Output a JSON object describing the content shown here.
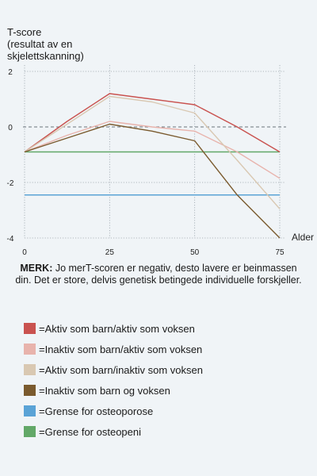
{
  "chart_data": {
    "type": "line",
    "ylabel_lines": [
      "T-score",
      "(resultat av en",
      "skjelettskanning)"
    ],
    "xlabel": "Alder",
    "x": [
      0,
      12.5,
      25,
      37.5,
      50,
      62.5,
      75
    ],
    "xticks": [
      0,
      25,
      50,
      75
    ],
    "yticks": [
      2,
      0,
      -2,
      -4
    ],
    "xlim": [
      0,
      75
    ],
    "ylim": [
      -4,
      2
    ],
    "grid": true,
    "series": [
      {
        "name": "Aktiv som barn/aktiv som voksen",
        "color": "#c9524f",
        "values": [
          -0.9,
          0.2,
          1.2,
          1.0,
          0.8,
          0.0,
          -0.9
        ]
      },
      {
        "name": "Inaktiv som barn/aktiv som voksen",
        "color": "#e8b3ac",
        "values": [
          -0.9,
          -0.3,
          0.2,
          0.0,
          -0.15,
          -0.9,
          -1.85
        ]
      },
      {
        "name": "Aktiv som barn/inaktiv som voksen",
        "color": "#d9c8b2",
        "values": [
          -0.9,
          0.1,
          1.1,
          0.9,
          0.5,
          -1.2,
          -2.95
        ]
      },
      {
        "name": "Inaktiv som barn og voksen",
        "color": "#7a5a2e",
        "values": [
          -0.9,
          -0.4,
          0.1,
          -0.15,
          -0.5,
          -2.45,
          -4.0
        ]
      }
    ],
    "reference_lines": [
      {
        "name": "Grense for osteoporose",
        "color": "#5aa3d6",
        "y": -2.45
      },
      {
        "name": "Grense for osteopeni",
        "color": "#62a868",
        "y": -0.9
      }
    ],
    "zero_line_dashed": true
  },
  "note": {
    "bold": "MERK:",
    "text": " Jo merT-scoren er negativ, desto lavere er beinmassen din. Det er store, delvis genetisk betingede individuelle forskjeller."
  },
  "legend": {
    "prefix": "= ",
    "items": [
      {
        "label": "Aktiv som barn/aktiv som voksen",
        "color": "#c9524f"
      },
      {
        "label": "Inaktiv som barn/aktiv som voksen",
        "color": "#e8b3ac"
      },
      {
        "label": "Aktiv som barn/inaktiv som voksen",
        "color": "#d9c8b2"
      },
      {
        "label": "Inaktiv som barn og voksen",
        "color": "#7a5a2e"
      },
      {
        "label": "Grense for osteoporose",
        "color": "#5aa3d6"
      },
      {
        "label": "Grense for osteopeni",
        "color": "#62a868"
      }
    ]
  }
}
